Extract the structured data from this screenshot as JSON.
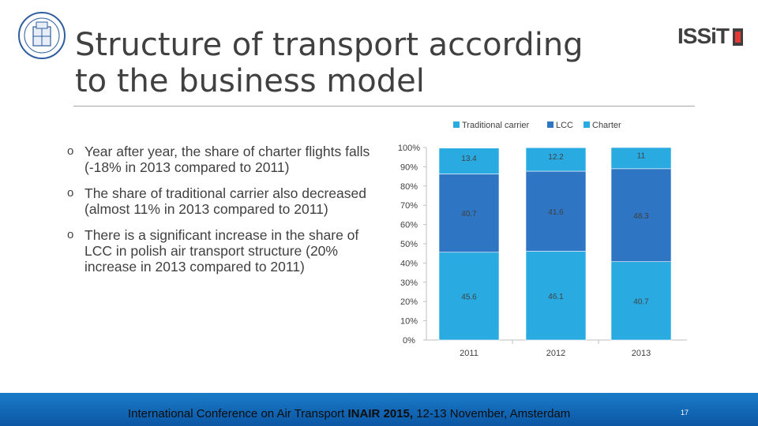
{
  "slide": {
    "title_line1": "Structure of transport according",
    "title_line2": "to the business model",
    "logo_text": "ISSiT",
    "page_number": "17"
  },
  "bullets": [
    {
      "marker": "o",
      "text": "Year after year, the share of charter flights falls (-18% in 2013 compared to 2011)"
    },
    {
      "marker": "o",
      "text": "The share of traditional carrier also decreased (almost 11% in 2013 compared to 2011)"
    },
    {
      "marker": "o",
      "text": "There is a significant increase in the share of LCC in polish air transport structure (20% increase in 2013 compared to 2011)"
    }
  ],
  "footer": {
    "prefix": "International Conference on Air Transport ",
    "bold": "INAIR 2015,",
    "suffix": " 12-13 November, Amsterdam"
  },
  "colors": {
    "traditional": "#29abe2",
    "lcc": "#2e75c4",
    "charter": "#29abe2",
    "footer": "#0b56a4"
  },
  "chart_data": {
    "type": "bar",
    "stacked": true,
    "categories": [
      "2011",
      "2012",
      "2013"
    ],
    "series": [
      {
        "name": "Traditional carrier",
        "values": [
          45.6,
          46.1,
          40.7
        ],
        "labels": [
          "45.6",
          "46.1",
          "40.7"
        ]
      },
      {
        "name": "LCC",
        "values": [
          40.7,
          41.6,
          48.3
        ],
        "labels": [
          "40.7",
          "41.6",
          "48.3"
        ]
      },
      {
        "name": "Charter",
        "values": [
          13.4,
          12.2,
          11
        ],
        "labels": [
          "13.4",
          "12.2",
          "11"
        ]
      }
    ],
    "y_ticks": [
      "0%",
      "10%",
      "20%",
      "30%",
      "40%",
      "50%",
      "60%",
      "70%",
      "80%",
      "90%",
      "100%"
    ],
    "ylim": [
      0,
      100
    ],
    "legend_position": "top"
  }
}
